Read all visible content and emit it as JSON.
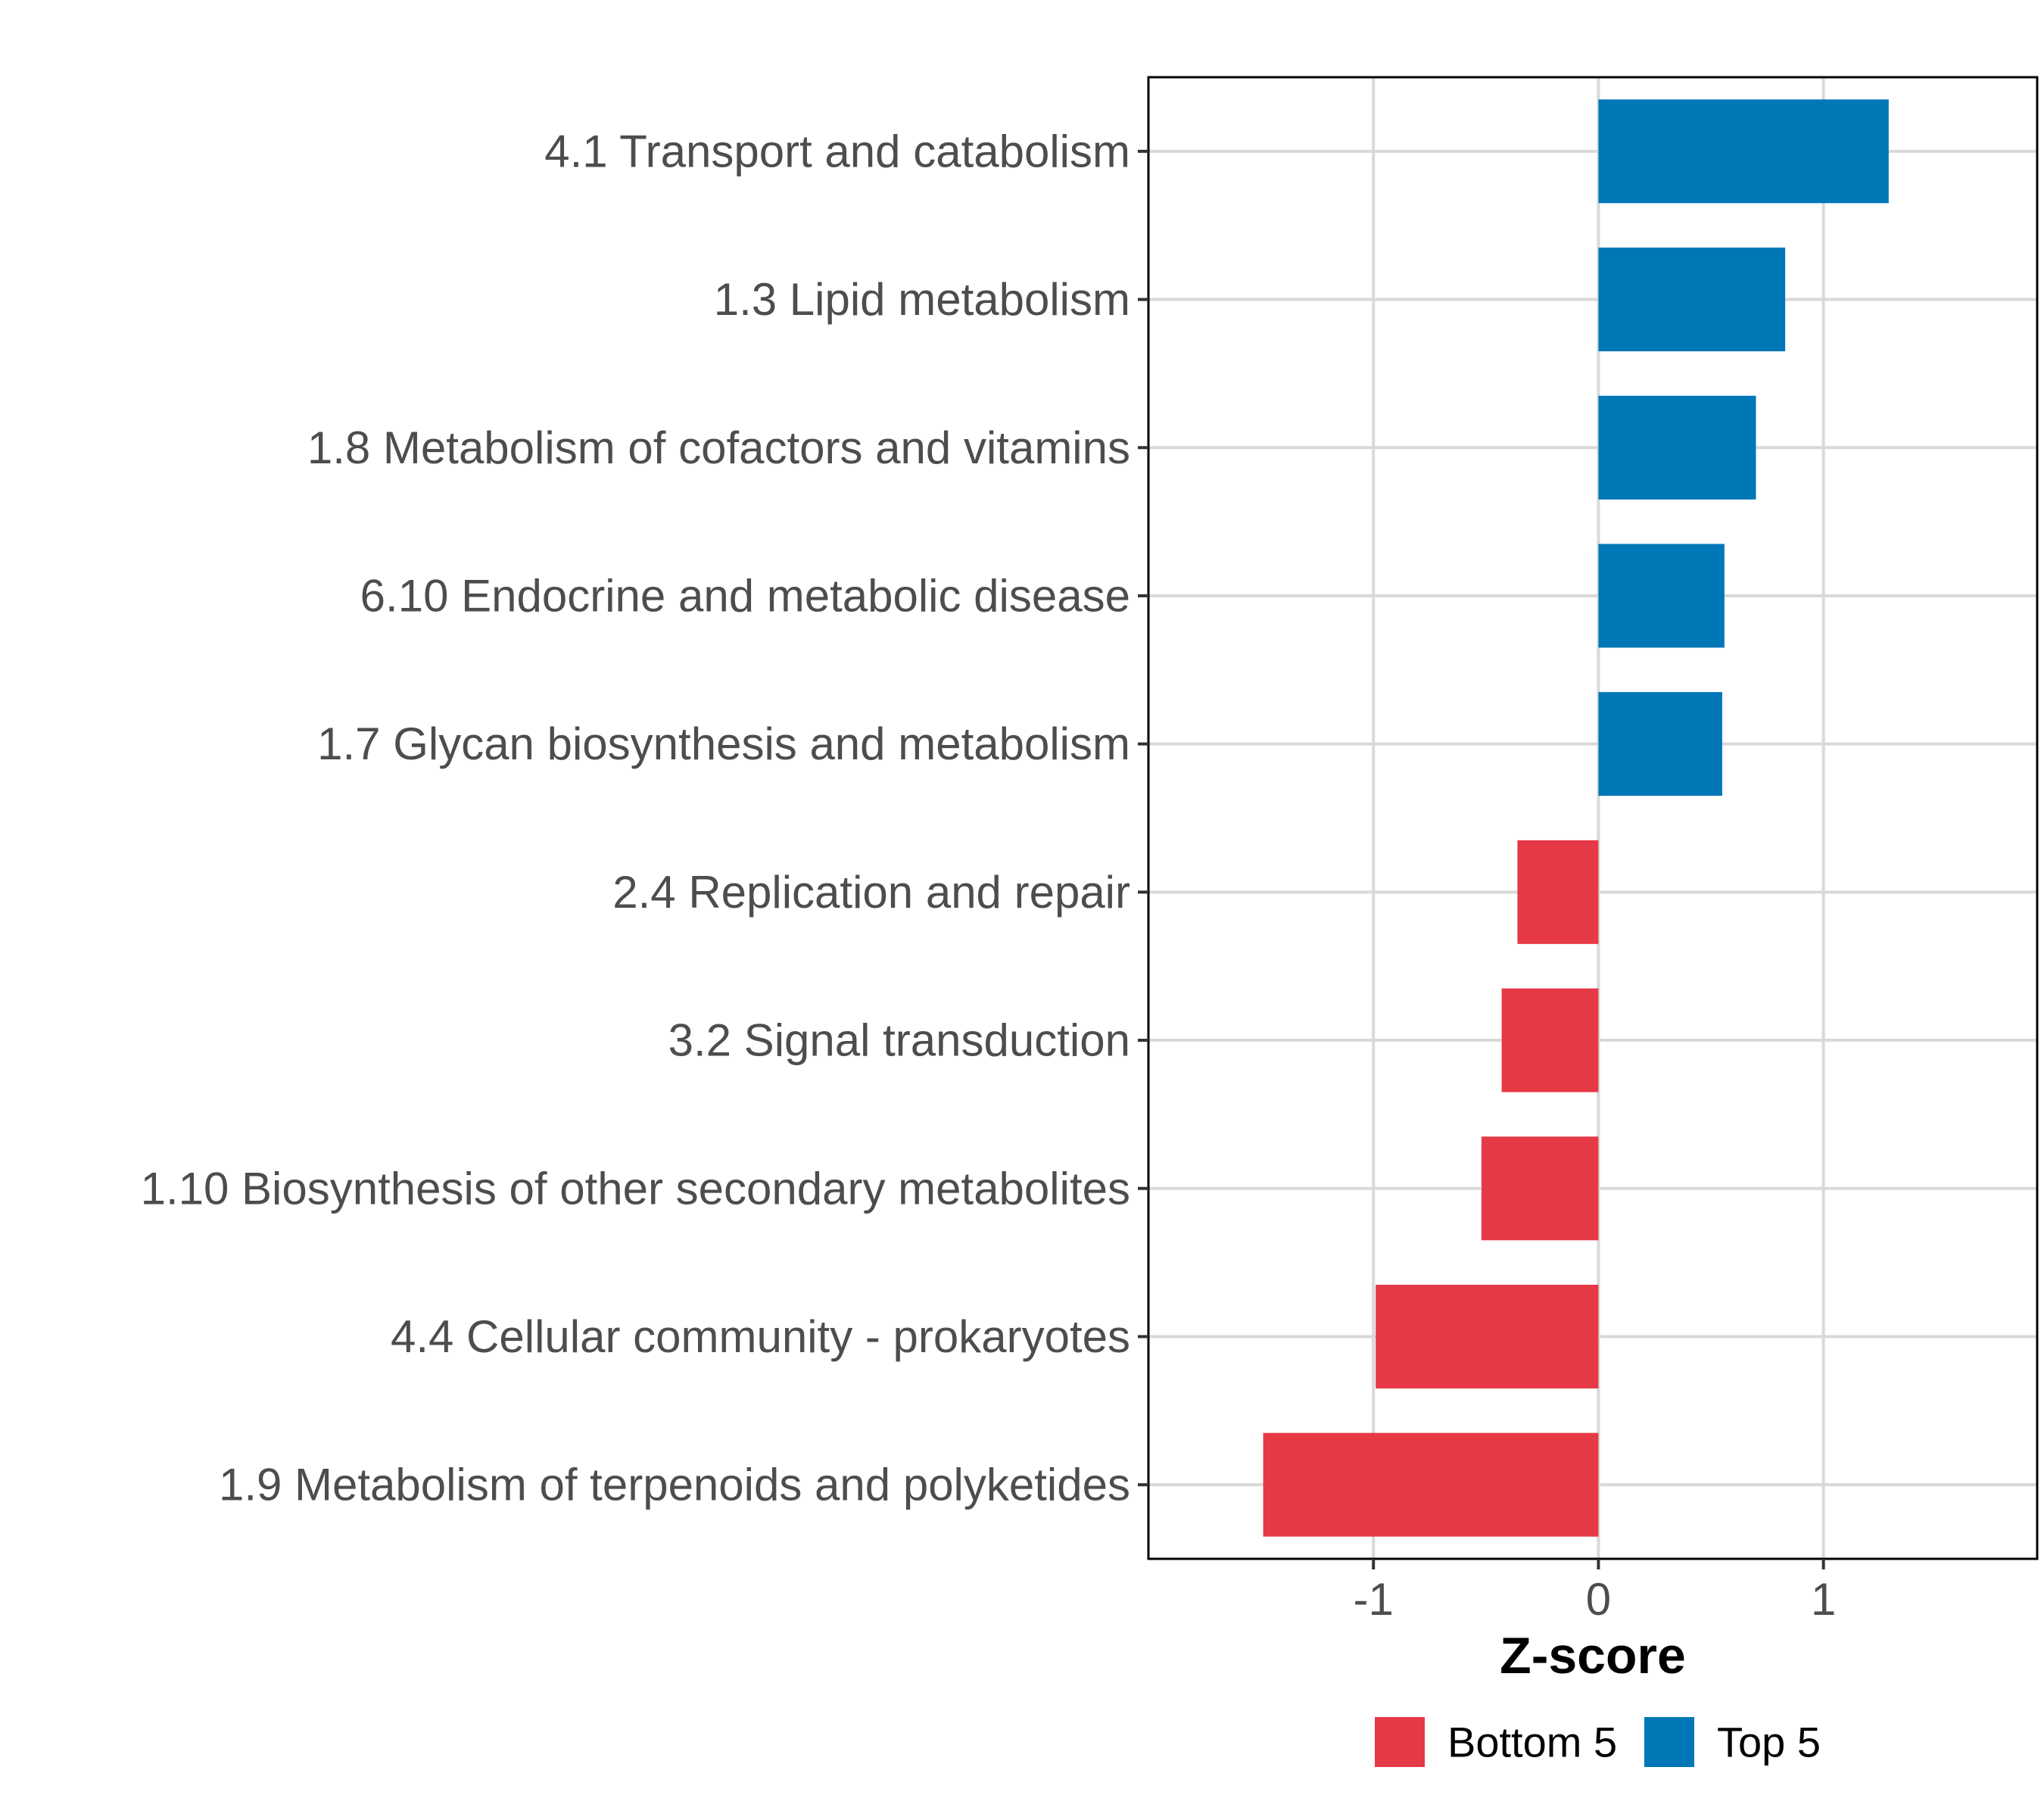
{
  "chart_data": {
    "type": "bar",
    "orientation": "horizontal",
    "title": "",
    "xlabel": "Z-score",
    "ylabel": "",
    "xlim": [
      -2.0,
      1.95
    ],
    "x_ticks": [
      -1,
      0,
      1
    ],
    "x_tick_labels": [
      "-1",
      "0",
      "1"
    ],
    "grid": true,
    "legend_position": "bottom",
    "categories": [
      "4.1 Transport and catabolism",
      "1.3 Lipid metabolism",
      "1.8 Metabolism of cofactors and vitamins",
      "6.10 Endocrine and metabolic disease",
      "1.7 Glycan biosynthesis and metabolism",
      "2.4 Replication and repair",
      "3.2 Signal transduction",
      "1.10 Biosynthesis of other secondary metabolites",
      "4.4 Cellular community - prokaryotes",
      "1.9 Metabolism of terpenoids and polyketides"
    ],
    "values": [
      1.29,
      0.83,
      0.7,
      0.56,
      0.55,
      -0.36,
      -0.43,
      -0.52,
      -0.99,
      -1.49
    ],
    "groups": [
      "Top 5",
      "Top 5",
      "Top 5",
      "Top 5",
      "Top 5",
      "Bottom 5",
      "Bottom 5",
      "Bottom 5",
      "Bottom 5",
      "Bottom 5"
    ],
    "legend": [
      {
        "name": "Bottom 5",
        "color": "#e63946"
      },
      {
        "name": "Top 5",
        "color": "#0077b6"
      }
    ]
  }
}
